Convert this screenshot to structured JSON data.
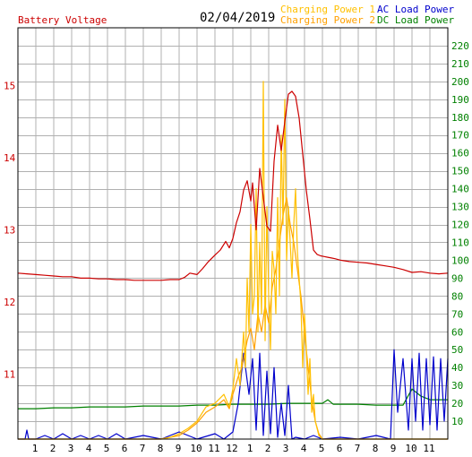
{
  "header": {
    "date": "02/04/2019",
    "left_label": "Battery Voltage",
    "legend": [
      {
        "label": "Charging Power 1",
        "color": "#ffc000"
      },
      {
        "label": "AC Load Power",
        "color": "#0000cc"
      },
      {
        "label": "Charging Power 2",
        "color": "#ffa000"
      },
      {
        "label": "DC Load Power",
        "color": "#008000"
      }
    ]
  },
  "colors": {
    "voltage": "#cc0000",
    "left_axis": "#cc0000",
    "right_axis": "#008000",
    "grid": "#b0b0b0",
    "frame": "#000000"
  },
  "chart_data": {
    "type": "line",
    "x_unit": "hours since midnight",
    "xlim": [
      0,
      24
    ],
    "x_tick_labels": [
      "1",
      "2",
      "3",
      "4",
      "5",
      "6",
      "7",
      "8",
      "9",
      "10",
      "11",
      "12",
      "1",
      "2",
      "3",
      "4",
      "5",
      "6",
      "7",
      "8",
      "9",
      "10",
      "11"
    ],
    "left_axis": {
      "label": "Battery Voltage",
      "ylim": [
        10.1,
        15.8
      ],
      "ticks": [
        11,
        12,
        13,
        14,
        15
      ]
    },
    "right_axis": {
      "ylim": [
        0,
        230
      ],
      "ticks": [
        10,
        20,
        30,
        40,
        50,
        60,
        70,
        80,
        90,
        100,
        110,
        120,
        130,
        140,
        150,
        160,
        170,
        180,
        190,
        200,
        210,
        220
      ]
    },
    "series": [
      {
        "name": "Battery Voltage",
        "axis": "left",
        "color": "#cc0000",
        "x": [
          0,
          0.5,
          1,
          1.5,
          2,
          2.5,
          3,
          3.5,
          4,
          4.5,
          5,
          5.5,
          6,
          6.5,
          7,
          7.5,
          8,
          8.5,
          9,
          9.3,
          9.6,
          10,
          10.3,
          10.6,
          11,
          11.3,
          11.6,
          11.8,
          12,
          12.2,
          12.4,
          12.6,
          12.8,
          13,
          13.1,
          13.3,
          13.5,
          13.7,
          13.9,
          14.1,
          14.3,
          14.5,
          14.7,
          14.9,
          15.1,
          15.3,
          15.5,
          15.7,
          15.9,
          16.1,
          16.3,
          16.5,
          16.7,
          16.9,
          17.1,
          17.3,
          17.5,
          17.7,
          18,
          18.5,
          19,
          19.5,
          20,
          20.5,
          21,
          21.5,
          22,
          22.5,
          23,
          23.5,
          24
        ],
        "values": [
          12.4,
          12.39,
          12.38,
          12.37,
          12.36,
          12.35,
          12.35,
          12.33,
          12.33,
          12.32,
          12.32,
          12.31,
          12.31,
          12.3,
          12.3,
          12.3,
          12.3,
          12.31,
          12.31,
          12.34,
          12.4,
          12.38,
          12.46,
          12.55,
          12.65,
          12.72,
          12.84,
          12.75,
          12.88,
          13.1,
          13.25,
          13.55,
          13.68,
          13.4,
          13.65,
          13.0,
          13.85,
          13.45,
          13.05,
          12.98,
          13.95,
          14.45,
          14.1,
          14.5,
          14.88,
          14.92,
          14.85,
          14.55,
          14.05,
          13.55,
          13.15,
          12.72,
          12.66,
          12.64,
          12.63,
          12.62,
          12.61,
          12.6,
          12.58,
          12.56,
          12.55,
          12.54,
          12.52,
          12.5,
          12.48,
          12.45,
          12.41,
          12.42,
          12.4,
          12.39,
          12.4
        ]
      },
      {
        "name": "Charging Power 1",
        "axis": "right",
        "color": "#ffc000",
        "x": [
          0,
          8,
          8.5,
          9,
          9.5,
          10,
          10.5,
          11,
          11.5,
          11.8,
          12,
          12.2,
          12.4,
          12.6,
          12.7,
          12.8,
          12.9,
          13.0,
          13.1,
          13.2,
          13.3,
          13.4,
          13.5,
          13.6,
          13.7,
          13.8,
          13.9,
          14.0,
          14.1,
          14.2,
          14.3,
          14.4,
          14.5,
          14.6,
          14.7,
          14.8,
          14.9,
          15.0,
          15.1,
          15.2,
          15.3,
          15.4,
          15.5,
          15.6,
          15.7,
          15.8,
          15.9,
          16.0,
          16.1,
          16.2,
          16.3,
          16.4,
          16.5,
          16.6,
          16.8,
          17,
          24
        ],
        "values": [
          0,
          0,
          1,
          3,
          6,
          10,
          18,
          20,
          25,
          18,
          28,
          45,
          30,
          60,
          40,
          90,
          60,
          120,
          70,
          80,
          140,
          60,
          110,
          70,
          200,
          55,
          130,
          80,
          50,
          105,
          95,
          70,
          135,
          80,
          170,
          120,
          190,
          100,
          130,
          110,
          90,
          120,
          140,
          105,
          90,
          75,
          40,
          70,
          50,
          25,
          45,
          15,
          25,
          10,
          2,
          0,
          0
        ]
      },
      {
        "name": "Charging Power 2",
        "axis": "right",
        "color": "#ffa000",
        "x": [
          0,
          8,
          8.5,
          9,
          9.5,
          10,
          10.5,
          11,
          11.5,
          11.8,
          12,
          12.3,
          12.5,
          12.8,
          13,
          13.2,
          13.4,
          13.6,
          13.8,
          14,
          14.2,
          14.4,
          14.6,
          14.8,
          15,
          15.2,
          15.4,
          15.6,
          15.8,
          16,
          16.2,
          16.4,
          16.6,
          16.8,
          17,
          24
        ],
        "values": [
          0,
          0,
          1,
          2,
          5,
          9,
          15,
          18,
          22,
          17,
          25,
          35,
          40,
          55,
          62,
          50,
          70,
          60,
          75,
          65,
          85,
          95,
          110,
          125,
          135,
          120,
          110,
          95,
          80,
          60,
          40,
          22,
          10,
          3,
          0,
          0
        ]
      },
      {
        "name": "AC Load Power",
        "axis": "right",
        "color": "#0000cc",
        "x": [
          0,
          0.4,
          0.5,
          0.6,
          1,
          1.5,
          2,
          2.5,
          3,
          3.5,
          4,
          4.5,
          5,
          5.5,
          6,
          7,
          8,
          9,
          10,
          11,
          11.5,
          12,
          12.3,
          12.6,
          12.9,
          13.1,
          13.3,
          13.5,
          13.7,
          13.9,
          14.1,
          14.3,
          14.5,
          14.7,
          14.9,
          15.1,
          15.3,
          15.5,
          16,
          16.5,
          17,
          18,
          19,
          20,
          20.8,
          21.0,
          21.2,
          21.5,
          21.8,
          22.0,
          22.2,
          22.4,
          22.6,
          22.8,
          23.0,
          23.2,
          23.4,
          23.6,
          23.8,
          24
        ],
        "values": [
          0,
          0,
          5,
          0,
          0,
          2,
          0,
          3,
          0,
          2,
          0,
          2,
          0,
          3,
          0,
          2,
          0,
          4,
          0,
          3,
          0,
          4,
          20,
          48,
          25,
          45,
          5,
          48,
          2,
          38,
          3,
          40,
          1,
          20,
          2,
          30,
          0,
          1,
          0,
          2,
          0,
          1,
          0,
          2,
          0,
          50,
          15,
          45,
          5,
          45,
          10,
          48,
          5,
          45,
          8,
          46,
          5,
          45,
          10,
          45
        ]
      },
      {
        "name": "DC Load Power",
        "axis": "right",
        "color": "#008000",
        "x": [
          0,
          1,
          2,
          3,
          4,
          5,
          6,
          7,
          8,
          9,
          10,
          11,
          12,
          13,
          14,
          15,
          16,
          17,
          17.3,
          17.6,
          18,
          19,
          20,
          21,
          21.5,
          22,
          22.5,
          23,
          24
        ],
        "values": [
          17,
          17,
          17.5,
          17.5,
          18,
          18,
          18,
          18.5,
          18.5,
          18.5,
          19,
          19,
          19.5,
          19.5,
          19.5,
          20,
          20,
          20,
          22,
          19.5,
          19.5,
          19.5,
          19,
          19,
          19,
          28,
          24,
          22,
          22
        ]
      }
    ]
  }
}
